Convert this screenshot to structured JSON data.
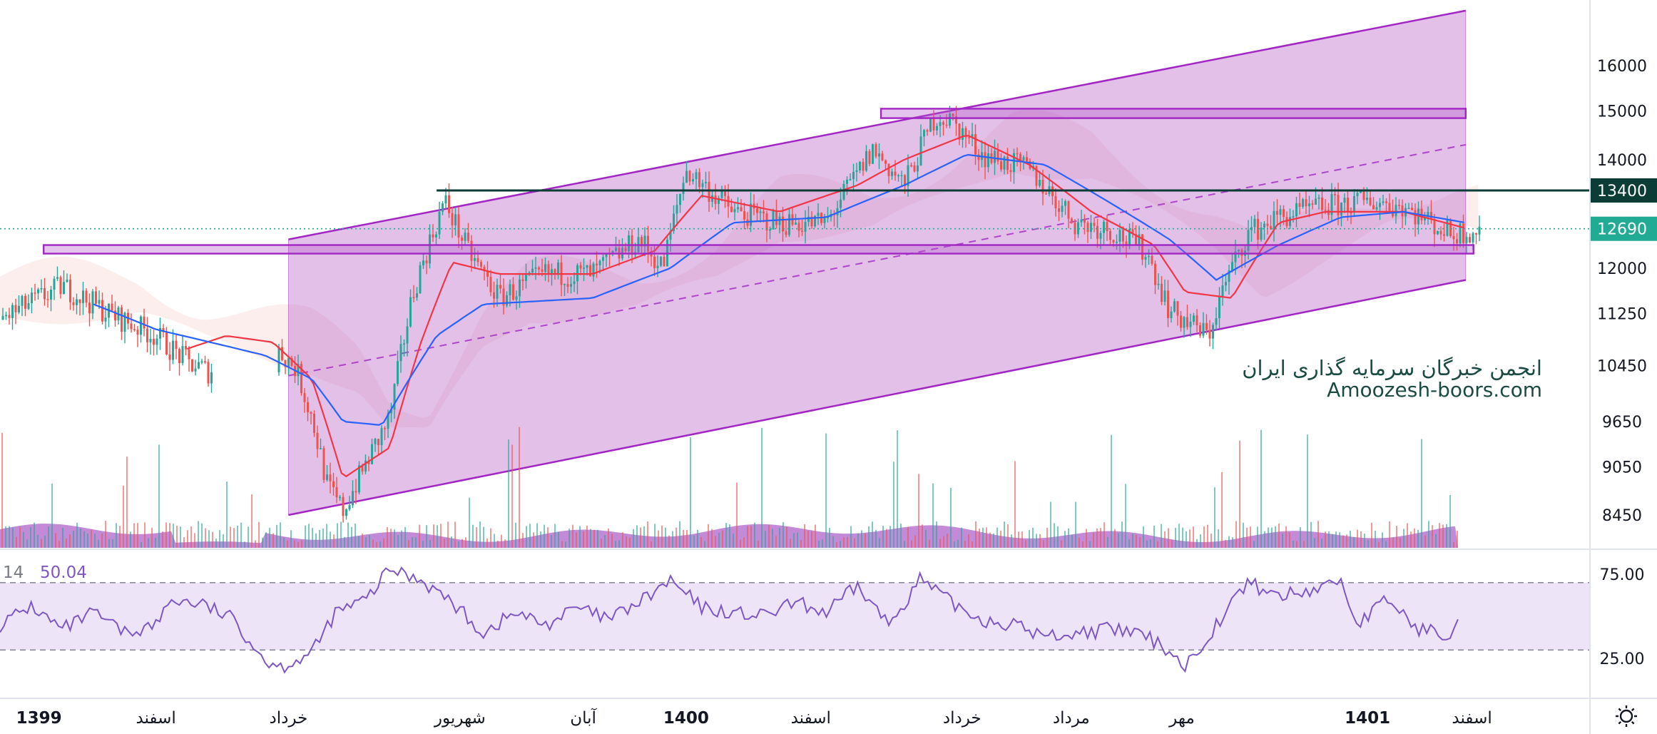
{
  "chart_data": [
    {
      "type": "candlestick",
      "title": "",
      "price_axis": {
        "ticks": [
          16000,
          15000,
          14000,
          13400,
          12690,
          12000,
          11250,
          10450,
          9650,
          9050,
          8450
        ],
        "scale": "log"
      },
      "time_axis": {
        "labels": [
          "1399",
          "اسفند",
          "خرداد",
          "شهریور",
          "آبان",
          "1400",
          "اسفند",
          "خرداد",
          "مرداد",
          "مهر",
          "1401",
          "اسفند"
        ],
        "bold_labels": [
          "1399",
          "1400",
          "1401"
        ]
      },
      "price_points": [
        {
          "t": 0,
          "p": 11150
        },
        {
          "t": 0.04,
          "p": 11700
        },
        {
          "t": 0.07,
          "p": 11250
        },
        {
          "t": 0.1,
          "p": 10900
        },
        {
          "t": 0.12,
          "p": 10500
        },
        {
          "t": 0.135,
          "p": 10350
        },
        {
          "t": 0.15,
          "p": 11350
        },
        {
          "t": 0.17,
          "p": 10900
        },
        {
          "t": 0.19,
          "p": 10400
        },
        {
          "t": 0.2,
          "p": 9700
        },
        {
          "t": 0.21,
          "p": 8800
        },
        {
          "t": 0.22,
          "p": 8500
        },
        {
          "t": 0.235,
          "p": 9100
        },
        {
          "t": 0.25,
          "p": 9700
        },
        {
          "t": 0.265,
          "p": 11600
        },
        {
          "t": 0.285,
          "p": 13200
        },
        {
          "t": 0.3,
          "p": 12300
        },
        {
          "t": 0.32,
          "p": 11500
        },
        {
          "t": 0.35,
          "p": 11900
        },
        {
          "t": 0.38,
          "p": 11900
        },
        {
          "t": 0.41,
          "p": 12500
        },
        {
          "t": 0.425,
          "p": 12000
        },
        {
          "t": 0.44,
          "p": 13800
        },
        {
          "t": 0.47,
          "p": 13000
        },
        {
          "t": 0.5,
          "p": 12800
        },
        {
          "t": 0.53,
          "p": 12800
        },
        {
          "t": 0.56,
          "p": 14200
        },
        {
          "t": 0.58,
          "p": 13500
        },
        {
          "t": 0.6,
          "p": 14900
        },
        {
          "t": 0.61,
          "p": 14800
        },
        {
          "t": 0.63,
          "p": 14100
        },
        {
          "t": 0.66,
          "p": 13800
        },
        {
          "t": 0.69,
          "p": 12800
        },
        {
          "t": 0.71,
          "p": 12700
        },
        {
          "t": 0.735,
          "p": 12300
        },
        {
          "t": 0.75,
          "p": 11300
        },
        {
          "t": 0.775,
          "p": 10900
        },
        {
          "t": 0.785,
          "p": 11700
        },
        {
          "t": 0.8,
          "p": 12600
        },
        {
          "t": 0.82,
          "p": 12900
        },
        {
          "t": 0.85,
          "p": 13100
        },
        {
          "t": 0.88,
          "p": 13200
        },
        {
          "t": 0.9,
          "p": 13100
        },
        {
          "t": 0.93,
          "p": 12600
        },
        {
          "t": 0.95,
          "p": 12690
        }
      ],
      "moving_averages": [
        {
          "color": "#f23645",
          "points": [
            {
              "t": 0.12,
              "p": 10700
            },
            {
              "t": 0.145,
              "p": 10900
            },
            {
              "t": 0.175,
              "p": 10800
            },
            {
              "t": 0.2,
              "p": 10250
            },
            {
              "t": 0.22,
              "p": 8900
            },
            {
              "t": 0.25,
              "p": 9300
            },
            {
              "t": 0.27,
              "p": 10800
            },
            {
              "t": 0.29,
              "p": 12100
            },
            {
              "t": 0.32,
              "p": 11900
            },
            {
              "t": 0.38,
              "p": 11900
            },
            {
              "t": 0.42,
              "p": 12300
            },
            {
              "t": 0.45,
              "p": 13300
            },
            {
              "t": 0.5,
              "p": 13000
            },
            {
              "t": 0.55,
              "p": 13500
            },
            {
              "t": 0.58,
              "p": 14000
            },
            {
              "t": 0.62,
              "p": 14500
            },
            {
              "t": 0.66,
              "p": 13900
            },
            {
              "t": 0.7,
              "p": 13000
            },
            {
              "t": 0.74,
              "p": 12400
            },
            {
              "t": 0.76,
              "p": 11600
            },
            {
              "t": 0.79,
              "p": 11500
            },
            {
              "t": 0.82,
              "p": 12800
            },
            {
              "t": 0.85,
              "p": 13000
            },
            {
              "t": 0.9,
              "p": 13000
            },
            {
              "t": 0.94,
              "p": 12700
            }
          ]
        },
        {
          "color": "#2962ff",
          "points": [
            {
              "t": 0.06,
              "p": 11400
            },
            {
              "t": 0.1,
              "p": 11000
            },
            {
              "t": 0.135,
              "p": 10800
            },
            {
              "t": 0.17,
              "p": 10600
            },
            {
              "t": 0.2,
              "p": 10250
            },
            {
              "t": 0.22,
              "p": 9650
            },
            {
              "t": 0.245,
              "p": 9600
            },
            {
              "t": 0.28,
              "p": 10900
            },
            {
              "t": 0.31,
              "p": 11400
            },
            {
              "t": 0.38,
              "p": 11500
            },
            {
              "t": 0.43,
              "p": 12000
            },
            {
              "t": 0.47,
              "p": 12800
            },
            {
              "t": 0.53,
              "p": 12900
            },
            {
              "t": 0.58,
              "p": 13500
            },
            {
              "t": 0.62,
              "p": 14100
            },
            {
              "t": 0.67,
              "p": 13900
            },
            {
              "t": 0.71,
              "p": 13200
            },
            {
              "t": 0.75,
              "p": 12500
            },
            {
              "t": 0.78,
              "p": 11800
            },
            {
              "t": 0.82,
              "p": 12400
            },
            {
              "t": 0.86,
              "p": 12900
            },
            {
              "t": 0.9,
              "p": 13000
            },
            {
              "t": 0.94,
              "p": 12800
            }
          ]
        }
      ],
      "channel": {
        "upper": [
          {
            "t": 0.185,
            "p": 12500
          },
          {
            "t": 0.94,
            "p": 17300
          }
        ],
        "lower": [
          {
            "t": 0.185,
            "p": 8450
          },
          {
            "t": 0.94,
            "p": 11800
          }
        ],
        "median": [
          {
            "t": 0.185,
            "p": 10300
          },
          {
            "t": 0.94,
            "p": 14300
          }
        ],
        "fill_color": "#ba68c8"
      },
      "horizontal_lines": [
        {
          "price": 13400,
          "color": "#0b3d36",
          "label": "13400",
          "from_t": 0.28
        },
        {
          "price": 12690,
          "color": "#22ab94",
          "label": "12690",
          "style": "dotted"
        }
      ],
      "zones": [
        {
          "from_t": 0.565,
          "to_t": 0.94,
          "top": 15050,
          "bottom": 14850
        },
        {
          "from_t": 0.028,
          "to_t": 0.945,
          "top": 12400,
          "bottom": 12250
        }
      ],
      "volume_overlay": true,
      "watermark": [
        "انجمن خبرگان سرمایه گذاری ایران",
        "Amoozesh-boors.com"
      ]
    },
    {
      "type": "line",
      "name": "RSI",
      "legend": [
        "14",
        "50.04"
      ],
      "y_ticks": [
        75.0,
        25.0
      ],
      "band": [
        30,
        70
      ],
      "points": [
        {
          "t": 0,
          "v": 45
        },
        {
          "t": 0.02,
          "v": 56
        },
        {
          "t": 0.04,
          "v": 42
        },
        {
          "t": 0.06,
          "v": 52
        },
        {
          "t": 0.08,
          "v": 40
        },
        {
          "t": 0.1,
          "v": 45
        },
        {
          "t": 0.11,
          "v": 60
        },
        {
          "t": 0.13,
          "v": 57
        },
        {
          "t": 0.15,
          "v": 48
        },
        {
          "t": 0.17,
          "v": 24
        },
        {
          "t": 0.18,
          "v": 20
        },
        {
          "t": 0.2,
          "v": 28
        },
        {
          "t": 0.215,
          "v": 52
        },
        {
          "t": 0.235,
          "v": 60
        },
        {
          "t": 0.25,
          "v": 78
        },
        {
          "t": 0.27,
          "v": 72
        },
        {
          "t": 0.29,
          "v": 58
        },
        {
          "t": 0.31,
          "v": 40
        },
        {
          "t": 0.33,
          "v": 52
        },
        {
          "t": 0.35,
          "v": 45
        },
        {
          "t": 0.37,
          "v": 55
        },
        {
          "t": 0.39,
          "v": 48
        },
        {
          "t": 0.41,
          "v": 58
        },
        {
          "t": 0.43,
          "v": 71
        },
        {
          "t": 0.45,
          "v": 55
        },
        {
          "t": 0.47,
          "v": 52
        },
        {
          "t": 0.49,
          "v": 50
        },
        {
          "t": 0.51,
          "v": 58
        },
        {
          "t": 0.53,
          "v": 52
        },
        {
          "t": 0.55,
          "v": 68
        },
        {
          "t": 0.57,
          "v": 45
        },
        {
          "t": 0.59,
          "v": 72
        },
        {
          "t": 0.61,
          "v": 58
        },
        {
          "t": 0.63,
          "v": 48
        },
        {
          "t": 0.65,
          "v": 45
        },
        {
          "t": 0.67,
          "v": 38
        },
        {
          "t": 0.69,
          "v": 40
        },
        {
          "t": 0.71,
          "v": 42
        },
        {
          "t": 0.73,
          "v": 40
        },
        {
          "t": 0.75,
          "v": 30
        },
        {
          "t": 0.76,
          "v": 20
        },
        {
          "t": 0.78,
          "v": 45
        },
        {
          "t": 0.8,
          "v": 70
        },
        {
          "t": 0.82,
          "v": 62
        },
        {
          "t": 0.84,
          "v": 65
        },
        {
          "t": 0.86,
          "v": 72
        },
        {
          "t": 0.87,
          "v": 45
        },
        {
          "t": 0.89,
          "v": 60
        },
        {
          "t": 0.91,
          "v": 42
        },
        {
          "t": 0.93,
          "v": 40
        },
        {
          "t": 0.935,
          "v": 51
        }
      ]
    }
  ],
  "colors": {
    "up": "#26a69a",
    "down": "#ef5350",
    "channel": "#b257c9",
    "zone_stroke": "#a126c4",
    "rsi_line": "#7e57c2",
    "rsi_band": "#ede4f7",
    "level_dark": "#0b3d36",
    "level_teal": "#22ab94",
    "volume": "#a24bc2"
  },
  "icons": {
    "settings": "sun-gear-icon"
  }
}
